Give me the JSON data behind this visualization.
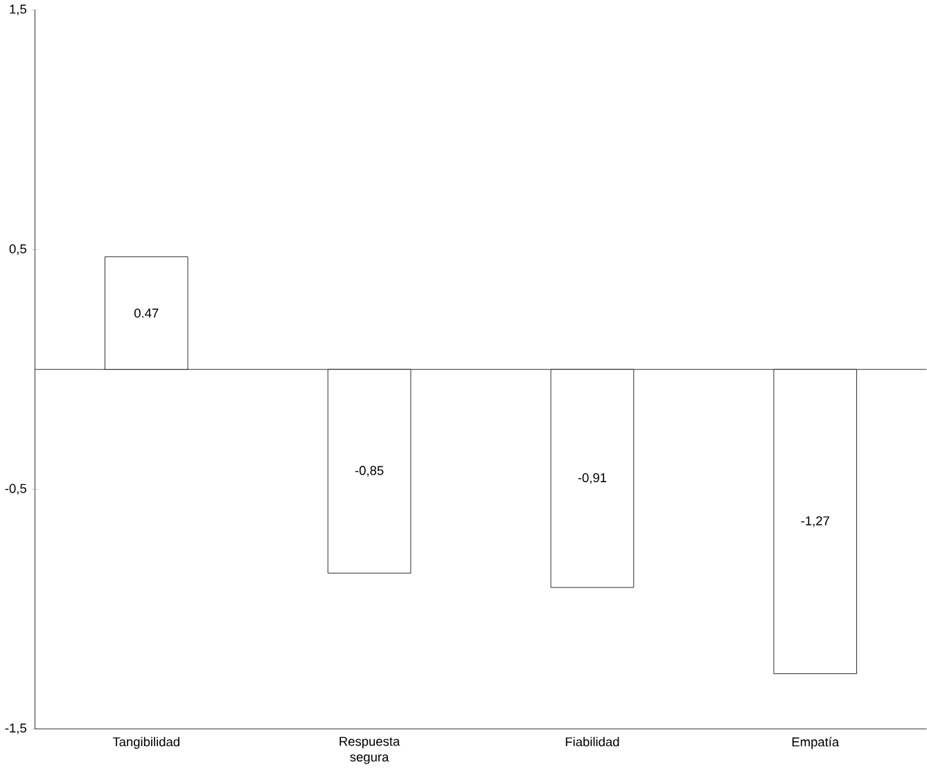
{
  "chart_data": {
    "type": "bar",
    "categories": [
      "Tangibilidad",
      "Respuesta segura",
      "Fiabilidad",
      "Empatía"
    ],
    "values": [
      0.47,
      -0.85,
      -0.91,
      -1.27
    ],
    "value_labels": [
      "0.47",
      "-0,85",
      "-0,91",
      "-1,27"
    ],
    "color": "#ffffff",
    "ylim": [
      -1.5,
      1.5
    ],
    "yticks": [
      {
        "value": -1.5,
        "label": "-1,5"
      },
      {
        "value": -0.5,
        "label": "-0,5"
      },
      {
        "value": 0.5,
        "label": "0,5"
      },
      {
        "value": 1.5,
        "label": "1,5"
      }
    ],
    "ref_lines": [
      {
        "axis": "y",
        "value": 0,
        "color": "#000000"
      }
    ],
    "grid": false
  }
}
